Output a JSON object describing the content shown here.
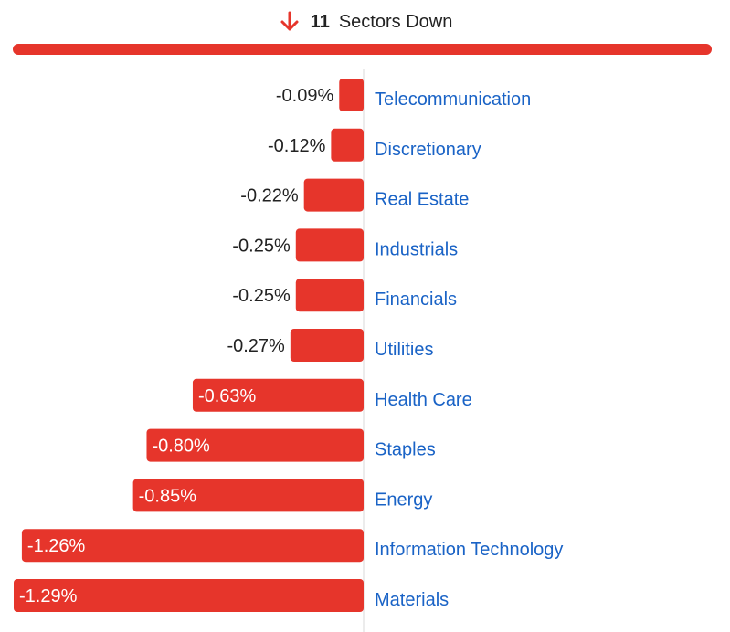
{
  "header": {
    "count": "11",
    "label": "Sectors Down",
    "icon": "arrow-down-icon"
  },
  "colors": {
    "bar": "#e6352b",
    "category_text": "#1a63c6",
    "value_text_outside": "#222222",
    "value_text_inside": "#ffffff",
    "axis_line": "#d9d9d9"
  },
  "chart_data": {
    "type": "bar",
    "orientation": "horizontal",
    "categories": [
      "Telecommunication",
      "Discretionary",
      "Real Estate",
      "Industrials",
      "Financials",
      "Utilities",
      "Health Care",
      "Staples",
      "Energy",
      "Information Technology",
      "Materials"
    ],
    "values": [
      -0.09,
      -0.12,
      -0.22,
      -0.25,
      -0.25,
      -0.27,
      -0.63,
      -0.8,
      -0.85,
      -1.26,
      -1.29
    ],
    "labels": [
      "-0.09%",
      "-0.12%",
      "-0.22%",
      "-0.25%",
      "-0.25%",
      "-0.27%",
      "-0.63%",
      "-0.80%",
      "-0.85%",
      "-1.26%",
      "-1.29%"
    ],
    "unit": "%",
    "xlim": [
      -1.29,
      0
    ]
  }
}
